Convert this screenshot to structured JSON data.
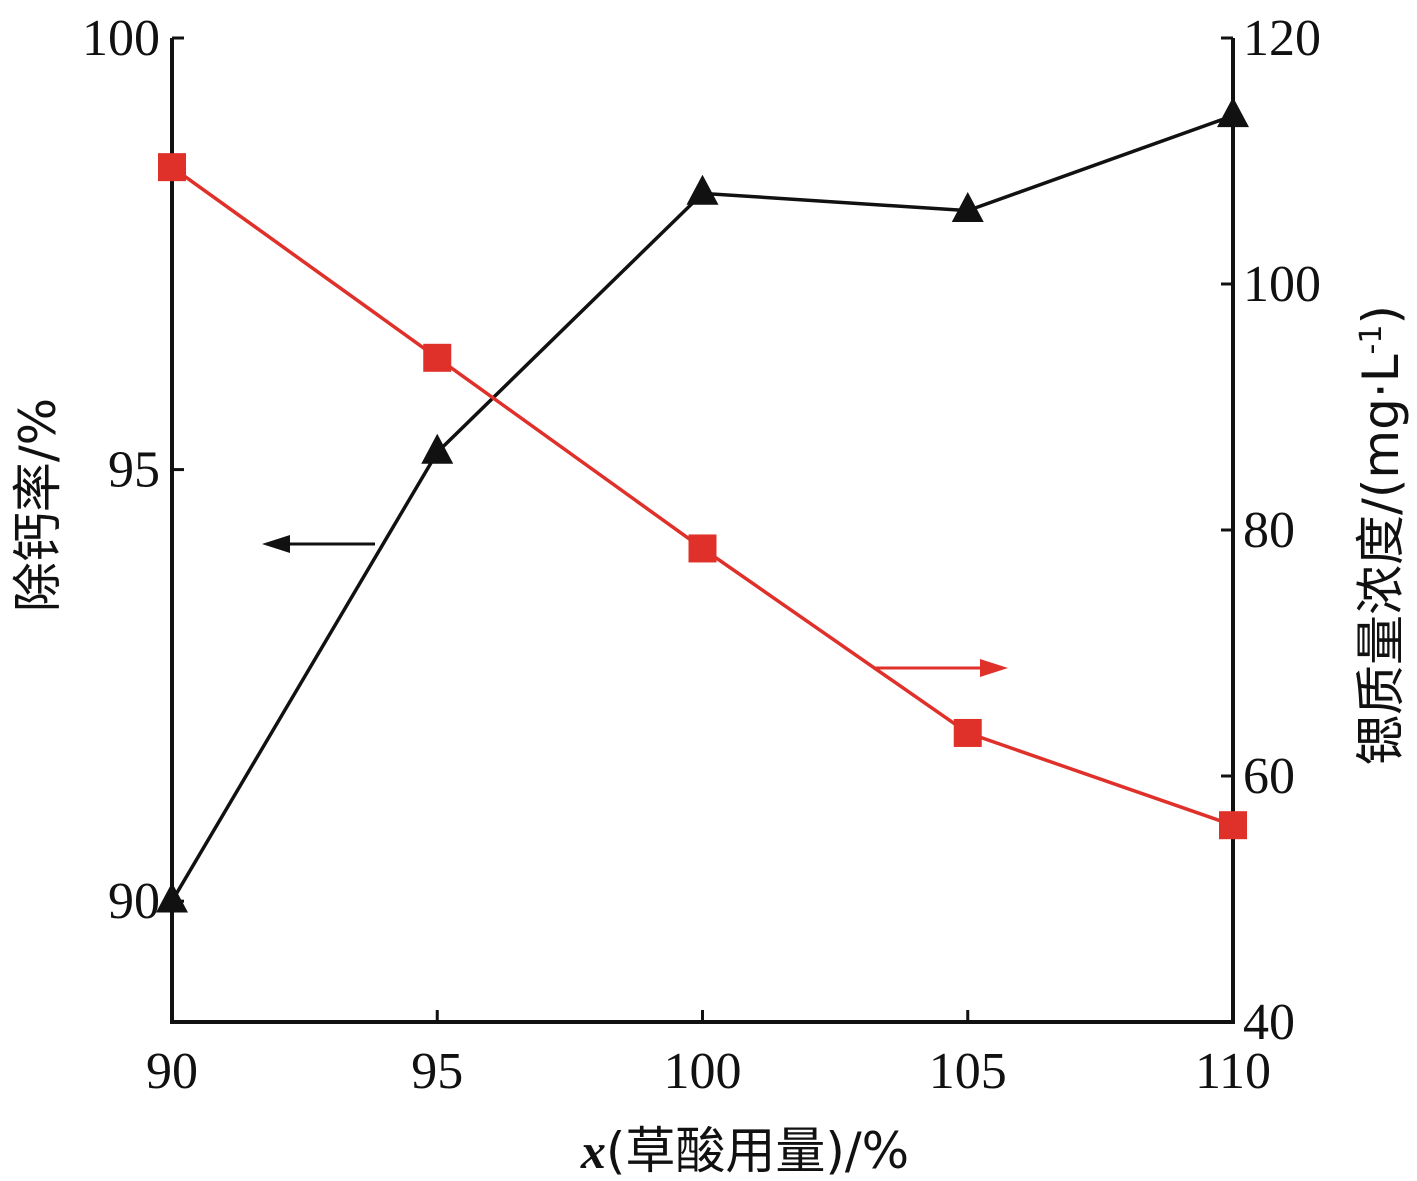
{
  "chart_data": {
    "type": "line",
    "xlabel_parts": {
      "var": "x",
      "rest": "(草酸用量)/%"
    },
    "ylabel_left": "除钙率/%",
    "ylabel_right": "锶质量浓度/(mg·L",
    "ylabel_right_sup": "-1",
    "ylabel_right_close": ")",
    "x": [
      90,
      95,
      100,
      105,
      110
    ],
    "x_tick_labels": [
      "90",
      "95",
      "100",
      "105",
      "110"
    ],
    "xlim": [
      90,
      110
    ],
    "ylim_left": [
      88.6,
      100
    ],
    "ylim_right": [
      40,
      120
    ],
    "yticks_left": [
      "90",
      "95",
      "100"
    ],
    "yticks_right": [
      "40",
      "60",
      "80",
      "100",
      "120"
    ],
    "series": [
      {
        "axis": "left",
        "marker": "triangle",
        "color": "#111111",
        "values": [
          90.0,
          95.2,
          98.2,
          98.0,
          99.1
        ]
      },
      {
        "axis": "right",
        "marker": "square",
        "color": "#e0302a",
        "values": [
          109.5,
          94.0,
          78.5,
          63.5,
          56.0
        ]
      }
    ]
  }
}
